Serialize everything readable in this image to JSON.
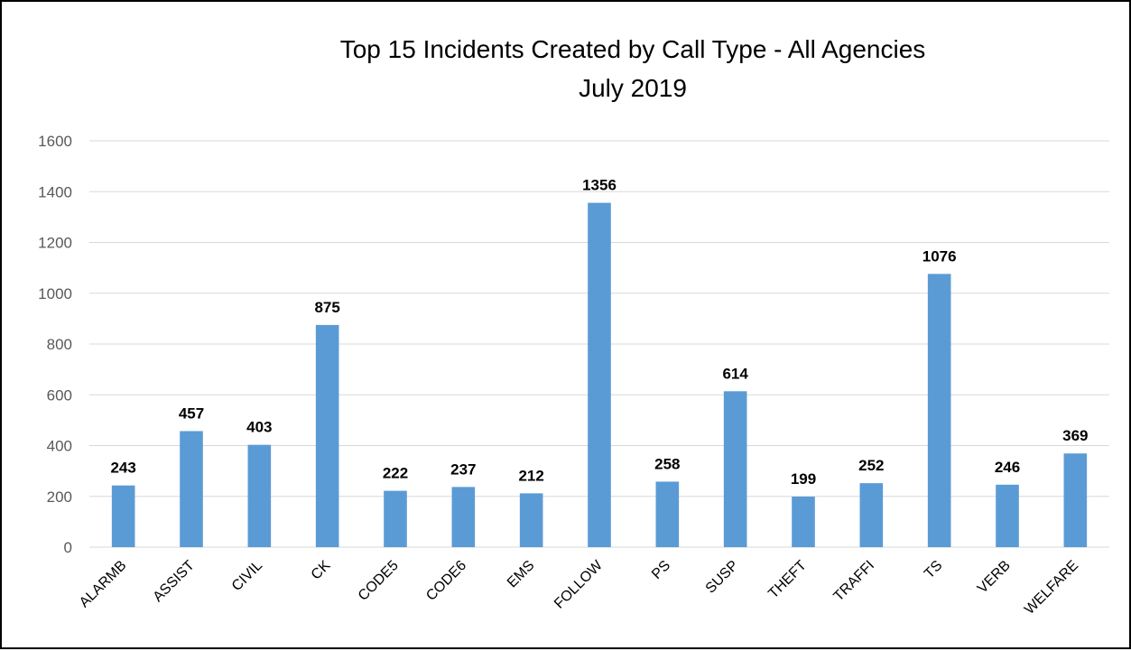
{
  "chart_data": {
    "type": "bar",
    "title": "Top 15 Incidents Created by Call Type - All Agencies",
    "subtitle": "July 2019",
    "xlabel": "",
    "ylabel": "",
    "categories": [
      "ALARMB",
      "ASSIST",
      "CIVIL",
      "CK",
      "CODE5",
      "CODE6",
      "EMS",
      "FOLLOW",
      "PS",
      "SUSP",
      "THEFT",
      "TRAFFI",
      "TS",
      "VERB",
      "WELFARE"
    ],
    "values": [
      243,
      457,
      403,
      875,
      222,
      237,
      212,
      1356,
      258,
      614,
      199,
      252,
      1076,
      246,
      369
    ],
    "ylim": [
      0,
      1600
    ],
    "yticks": [
      0,
      200,
      400,
      600,
      800,
      1000,
      1200,
      1400,
      1600
    ],
    "grid": true,
    "legend": "none",
    "bar_color": "#5B9BD5",
    "grid_color": "#D9D9D9"
  }
}
